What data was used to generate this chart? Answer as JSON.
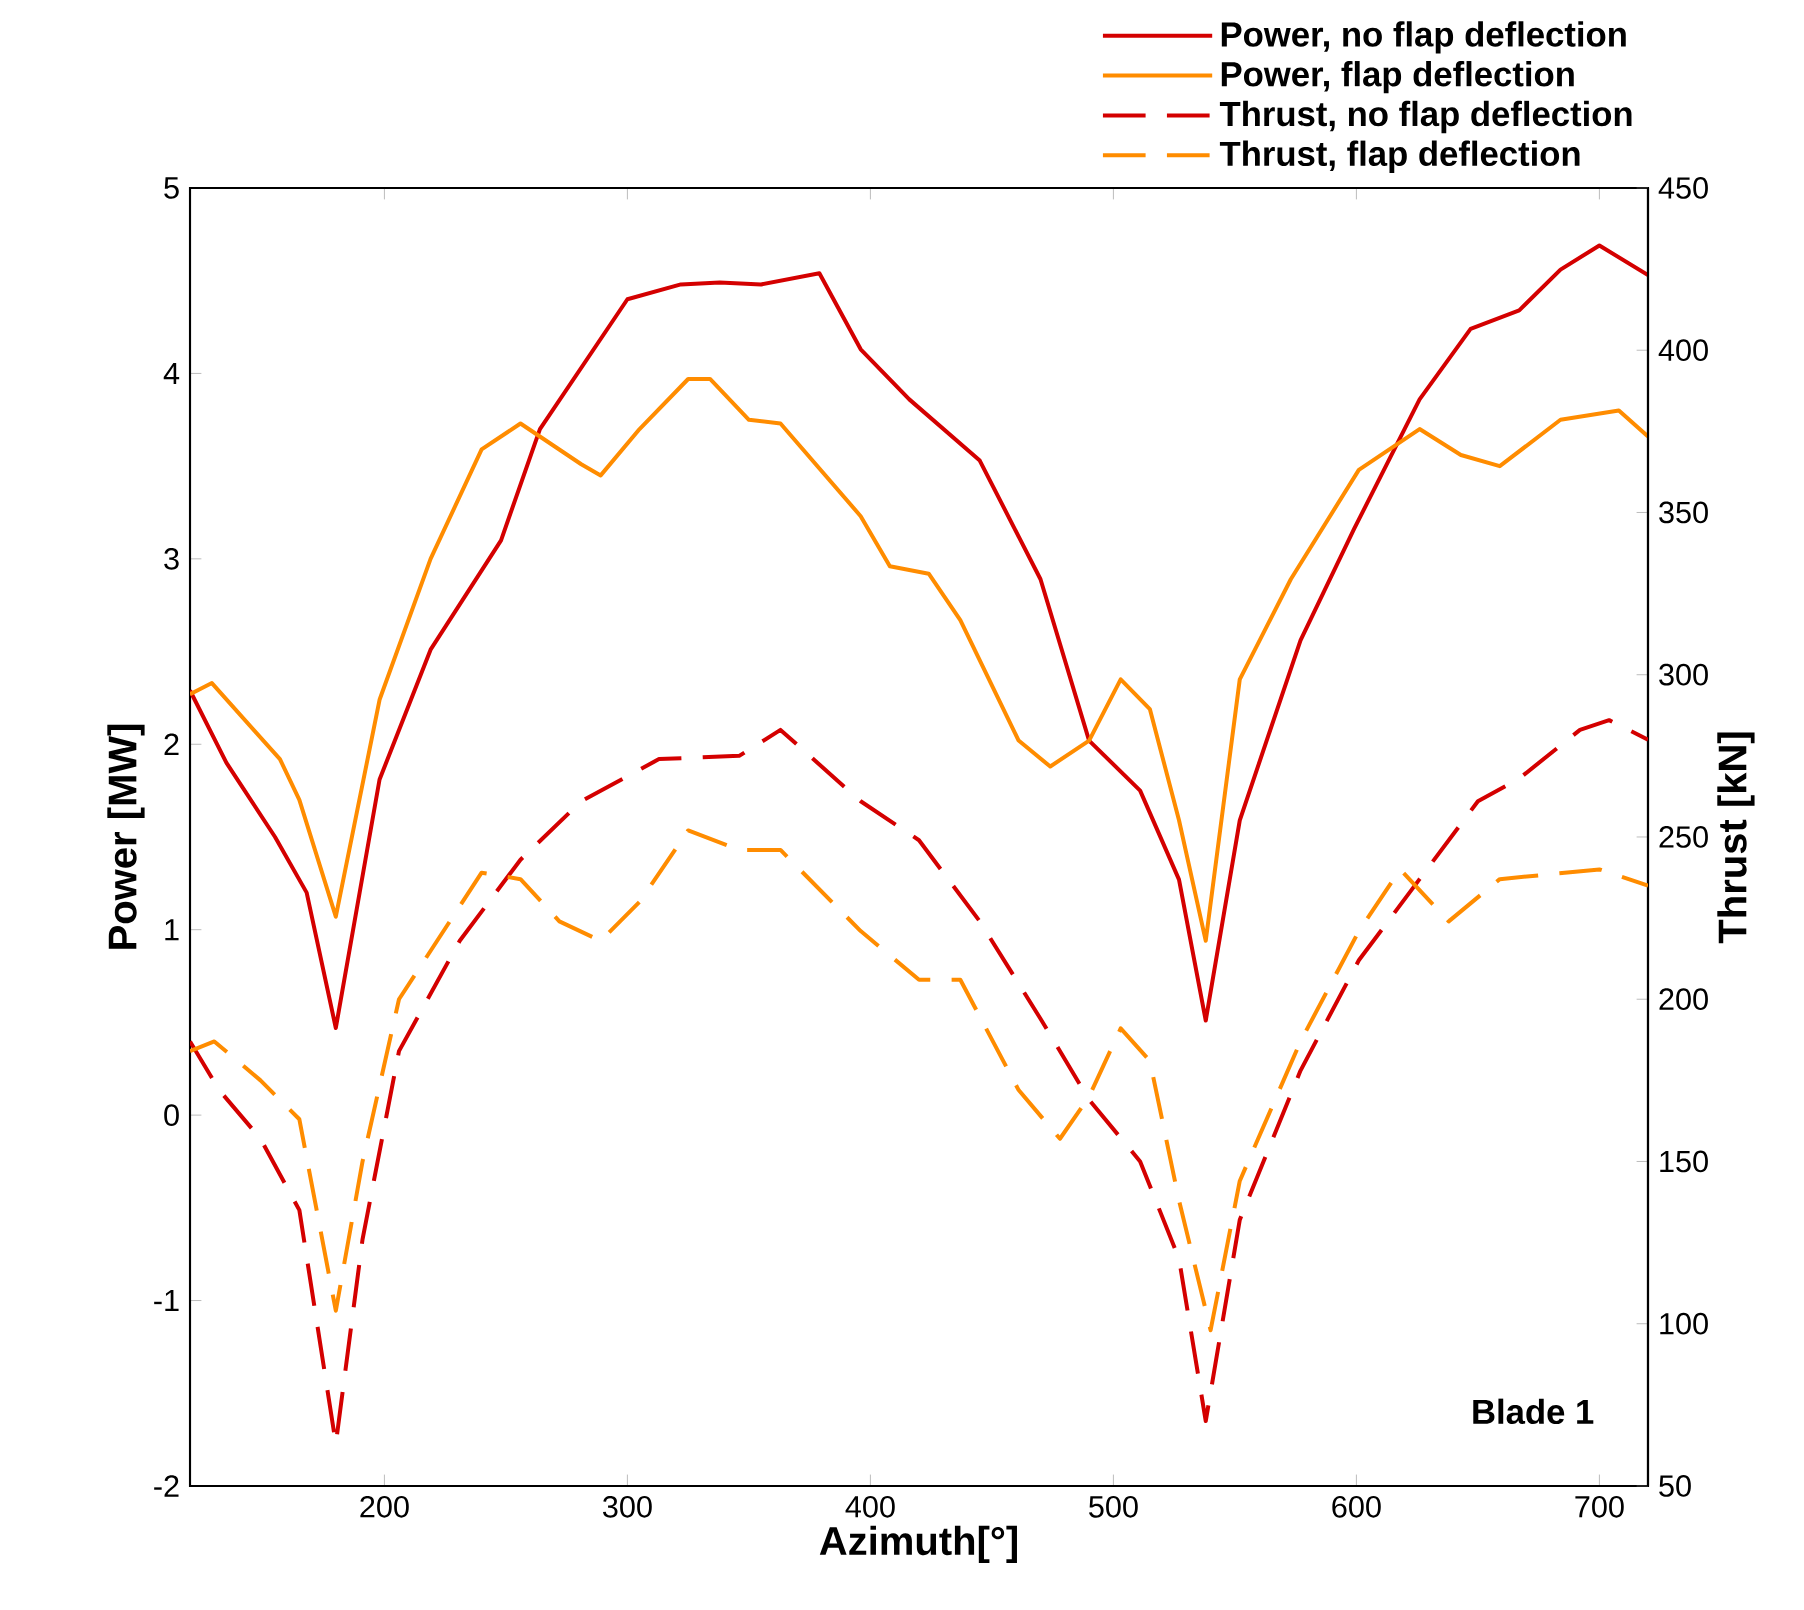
{
  "chart_data": {
    "type": "line",
    "xlabel": "Azimuth[°]",
    "ylabel": "Power [MW]",
    "y2label": "Thrust [kN]",
    "xlim": [
      120,
      720
    ],
    "xticks": [
      200,
      300,
      400,
      500,
      600,
      700
    ],
    "ylim": [
      -2,
      5
    ],
    "yticks": [
      -2,
      -1,
      0,
      1,
      2,
      3,
      4,
      5
    ],
    "y2lim": [
      50,
      450
    ],
    "y2ticks": [
      50,
      100,
      150,
      200,
      250,
      300,
      350,
      400,
      450
    ],
    "legend": "top right",
    "annotations": [
      "Blade 1"
    ],
    "series": [
      {
        "name": "Power, no flap deflection",
        "color": "#d40000",
        "line_style": "solid",
        "axis": "y",
        "x": [
          120,
          135,
          155,
          168,
          180,
          198,
          219,
          248,
          264,
          300,
          322,
          338,
          355,
          379,
          396,
          416,
          445,
          470,
          490,
          511,
          527,
          538,
          552,
          577,
          599,
          626,
          647,
          667,
          684,
          700,
          720
        ],
        "values": [
          2.29,
          1.9,
          1.5,
          1.2,
          0.47,
          1.81,
          2.51,
          3.1,
          3.7,
          4.4,
          4.48,
          4.49,
          4.48,
          4.54,
          4.13,
          3.86,
          3.53,
          2.89,
          2.02,
          1.75,
          1.27,
          0.51,
          1.59,
          2.56,
          3.16,
          3.86,
          4.24,
          4.34,
          4.56,
          4.69,
          4.53
        ]
      },
      {
        "name": "Power, flap deflection",
        "color": "#ff8c00",
        "line_style": "solid",
        "axis": "y",
        "x": [
          120,
          129,
          157,
          165,
          180,
          198,
          219,
          240,
          256,
          281,
          289,
          305,
          325,
          334,
          350,
          363,
          396,
          408,
          424,
          437,
          461,
          474,
          490,
          503,
          515,
          527,
          538,
          552,
          573,
          601,
          626,
          643,
          659,
          684,
          708,
          720
        ],
        "values": [
          2.27,
          2.33,
          1.92,
          1.7,
          1.07,
          2.24,
          3.0,
          3.59,
          3.73,
          3.51,
          3.45,
          3.7,
          3.97,
          3.97,
          3.75,
          3.73,
          3.23,
          2.96,
          2.92,
          2.67,
          2.02,
          1.88,
          2.02,
          2.35,
          2.19,
          1.59,
          0.94,
          2.35,
          2.89,
          3.48,
          3.7,
          3.56,
          3.5,
          3.75,
          3.8,
          3.66
        ]
      },
      {
        "name": "Thrust, no flap deflection",
        "color": "#d40000",
        "line_style": "dashed",
        "axis": "y2",
        "x": [
          120,
          132,
          149,
          165,
          180,
          191,
          206,
          231,
          256,
          281,
          313,
          346,
          363,
          396,
          420,
          445,
          470,
          490,
          511,
          527,
          538,
          552,
          577,
          601,
          626,
          650,
          667,
          692,
          704,
          720
        ],
        "values": [
          187,
          172,
          157,
          135,
          63,
          126,
          184,
          218,
          243,
          261,
          274,
          275,
          283,
          261,
          249,
          224,
          194,
          169,
          150,
          120,
          70,
          132,
          178,
          212,
          237,
          261,
          268,
          283,
          286,
          280
        ]
      },
      {
        "name": "Thrust, flap deflection",
        "color": "#ff8c00",
        "line_style": "dashed",
        "axis": "y2",
        "x": [
          120,
          130,
          149,
          165,
          180,
          191,
          206,
          240,
          256,
          272,
          289,
          305,
          325,
          346,
          363,
          396,
          420,
          437,
          461,
          478,
          490,
          503,
          515,
          527,
          540,
          552,
          577,
          601,
          618,
          638,
          659,
          700,
          720
        ],
        "values": [
          184,
          187,
          175,
          163,
          104,
          150,
          200,
          239,
          237,
          224,
          218,
          230,
          252,
          246,
          246,
          221,
          206,
          206,
          172,
          157,
          170,
          191,
          181,
          138,
          98,
          144,
          187,
          221,
          240,
          224,
          237,
          240,
          235
        ]
      }
    ]
  }
}
